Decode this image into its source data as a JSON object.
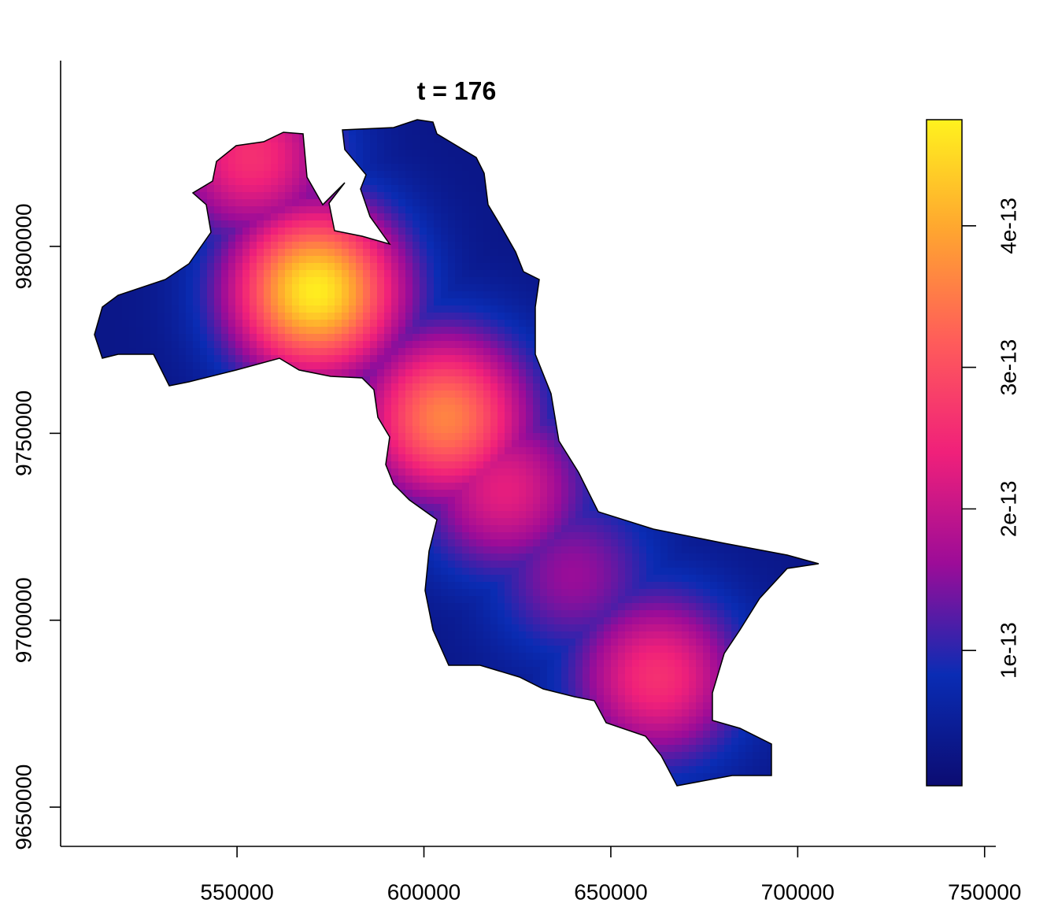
{
  "chart_data": {
    "type": "raster",
    "title": "t = 176",
    "xlim": [
      502800,
      753000
    ],
    "ylim": [
      9639500,
      9849700
    ],
    "xticks": [
      550000,
      600000,
      650000,
      700000,
      750000
    ],
    "yticks": [
      9650000,
      9700000,
      9750000,
      9800000
    ],
    "zlim": [
      4.4e-15,
      4.75e-13
    ],
    "zticks": [
      1e-13,
      2e-13,
      3e-13,
      4e-13
    ],
    "colors": [
      "#0c0c72",
      "#0a2cb4",
      "#9c0c98",
      "#f0207a",
      "#ff5c5a",
      "#ffa530",
      "#fff21e"
    ],
    "background_value": 3e-14,
    "peaks": [
      {
        "x": 571000,
        "y": 9788000,
        "value": 4.7e-13
      },
      {
        "x": 605700,
        "y": 9754200,
        "value": 3.6e-13
      },
      {
        "x": 554000,
        "y": 9823800,
        "value": 2.6e-13
      },
      {
        "x": 621500,
        "y": 9735000,
        "value": 2.3e-13
      },
      {
        "x": 640000,
        "y": 9712000,
        "value": 1.6e-13
      },
      {
        "x": 662400,
        "y": 9684800,
        "value": 2.6e-13
      }
    ]
  }
}
